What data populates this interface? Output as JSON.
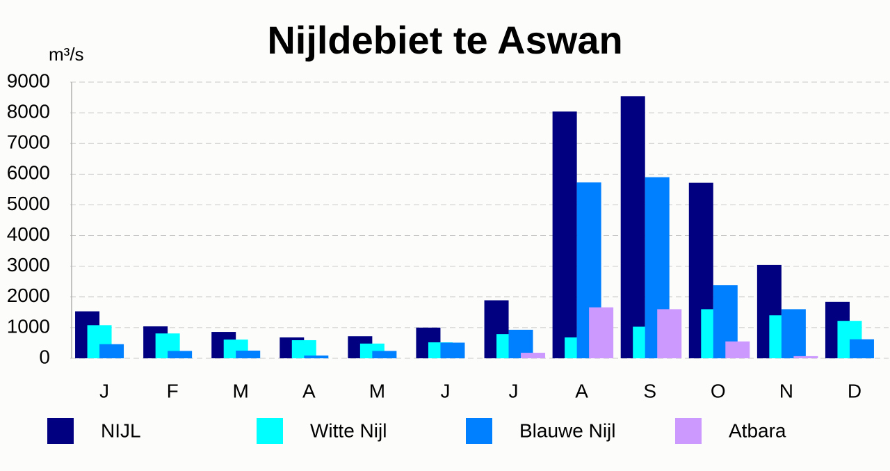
{
  "chart_data": {
    "type": "bar",
    "title": "Nijldebiet te Aswan",
    "y_label": "m³/s",
    "categories": [
      "J",
      "F",
      "M",
      "A",
      "M",
      "J",
      "J",
      "A",
      "S",
      "O",
      "N",
      "D"
    ],
    "series": [
      {
        "name": "NIJL",
        "color": "#000080",
        "values": [
          1530,
          1040,
          860,
          680,
          720,
          1000,
          1890,
          8040,
          8540,
          5720,
          3040,
          1840
        ]
      },
      {
        "name": "Witte Nijl",
        "color": "#00ffff",
        "values": [
          1080,
          810,
          610,
          590,
          480,
          520,
          790,
          680,
          1030,
          1600,
          1400,
          1220
        ]
      },
      {
        "name": "Blauwe Nijl",
        "color": "#0080ff",
        "values": [
          460,
          240,
          250,
          90,
          240,
          510,
          930,
          5730,
          5900,
          2380,
          1600,
          620
        ]
      },
      {
        "name": "Atbara",
        "color": "#cc99ff",
        "values": [
          0,
          0,
          0,
          0,
          0,
          0,
          180,
          1660,
          1600,
          550,
          70,
          0
        ]
      }
    ],
    "ylim": [
      0,
      9000
    ],
    "yticks": [
      0,
      1000,
      2000,
      3000,
      4000,
      5000,
      6000,
      7000,
      8000,
      9000
    ],
    "grid": true,
    "legend": "bottom"
  }
}
